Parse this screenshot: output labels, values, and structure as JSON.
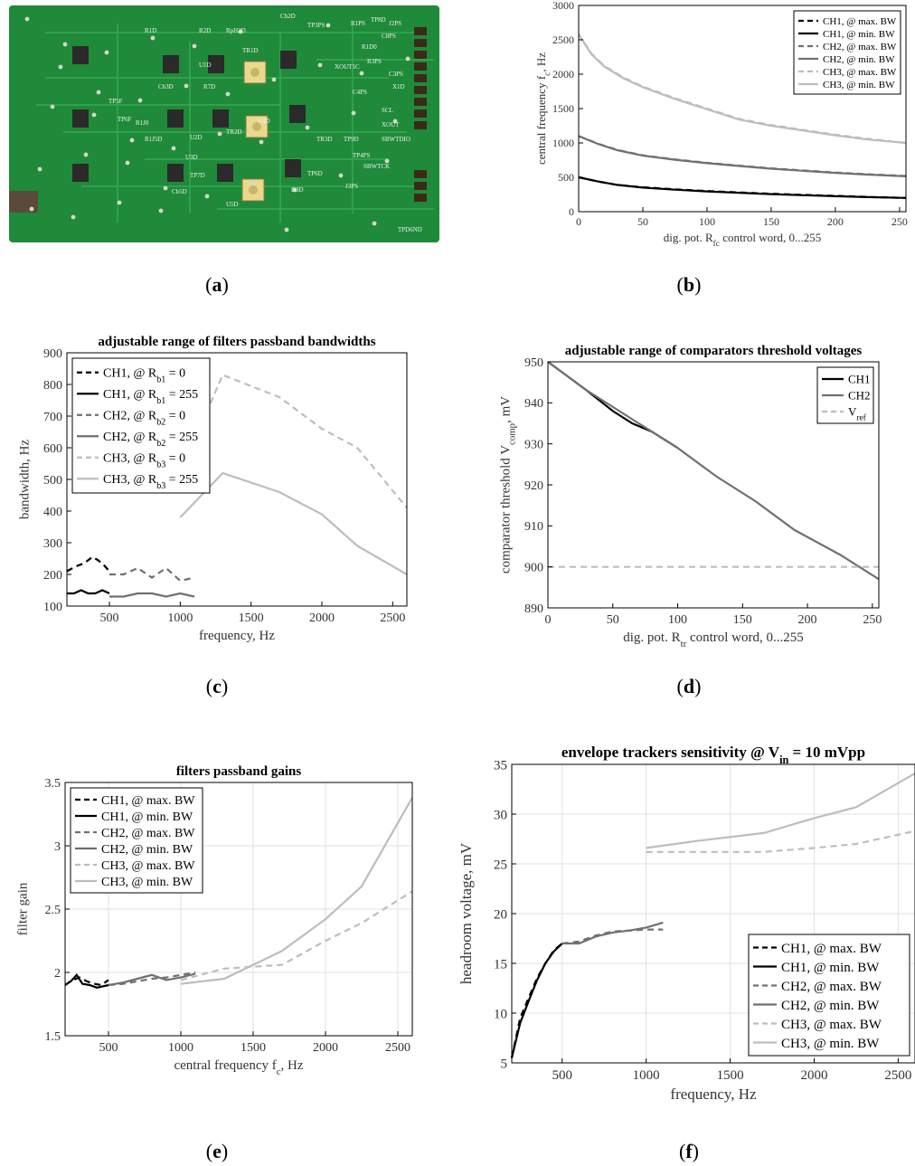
{
  "captions": [
    {
      "letter": "a",
      "open": "(",
      "close": ")"
    },
    {
      "letter": "b",
      "open": "(",
      "close": ")"
    },
    {
      "letter": "c",
      "open": "(",
      "close": ")"
    },
    {
      "letter": "d",
      "open": "(",
      "close": ")"
    },
    {
      "letter": "e",
      "open": "(",
      "close": ")"
    },
    {
      "letter": "f",
      "open": "(",
      "close": ")"
    }
  ],
  "pcb": {
    "board_color": "#1f8a3a",
    "silkscreen_labels": [
      "Cb2D",
      "TP3PS",
      "R1D",
      "R2D",
      "RpH3D",
      "U1D",
      "TR1D",
      "R7D",
      "Cb3D",
      "U2D",
      "TR2D",
      "U3D",
      "TP5F",
      "TP6F",
      "R1J0",
      "R1J5D",
      "Cb5D",
      "TP7D",
      "U5D",
      "D3D",
      "TR3D",
      "TP9D",
      "TP8D",
      "R1D0",
      "C8PS",
      "C3PS",
      "X1D",
      "SCL",
      "XOUT",
      "SBWTDIO",
      "SBWTCK",
      "TP4PS",
      "R3PS",
      "R1PS",
      "C4PS",
      "TP6D",
      "TPD6ND",
      "J3PS",
      "XOUT1C",
      "U4D",
      "J2PS"
    ]
  },
  "chart_data": [
    {
      "panel": "b",
      "type": "line",
      "title": "",
      "xlabel": "dig. pot. R_fc control word, 0...255",
      "ylabel": "central frequency f_c, Hz",
      "xlim": [
        0,
        255
      ],
      "ylim": [
        0,
        3000
      ],
      "xticks": [
        0,
        50,
        100,
        150,
        200,
        250
      ],
      "yticks": [
        0,
        500,
        1000,
        1500,
        2000,
        2500,
        3000
      ],
      "grid": false,
      "legend_position": "top-right",
      "series": [
        {
          "name": "CH1, @ max. BW",
          "color": "#000000",
          "dash": true,
          "x": [
            0,
            15,
            30,
            50,
            75,
            100,
            125,
            150,
            175,
            200,
            225,
            255
          ],
          "y": [
            500,
            440,
            390,
            355,
            325,
            300,
            280,
            260,
            245,
            230,
            215,
            200
          ]
        },
        {
          "name": "CH1, @ min. BW",
          "color": "#000000",
          "dash": false,
          "x": [
            0,
            15,
            30,
            50,
            75,
            100,
            125,
            150,
            175,
            200,
            225,
            255
          ],
          "y": [
            500,
            440,
            390,
            350,
            320,
            295,
            275,
            255,
            240,
            225,
            212,
            200
          ]
        },
        {
          "name": "CH2, @ max. BW",
          "color": "#707070",
          "dash": true,
          "x": [
            0,
            15,
            30,
            50,
            75,
            100,
            125,
            150,
            175,
            200,
            225,
            255
          ],
          "y": [
            1100,
            990,
            900,
            820,
            760,
            710,
            670,
            630,
            600,
            570,
            545,
            520
          ]
        },
        {
          "name": "CH2, @ min. BW",
          "color": "#707070",
          "dash": false,
          "x": [
            0,
            15,
            30,
            50,
            75,
            100,
            125,
            150,
            175,
            200,
            225,
            255
          ],
          "y": [
            1100,
            985,
            895,
            815,
            755,
            705,
            665,
            625,
            595,
            565,
            540,
            515
          ]
        },
        {
          "name": "CH3, @ max. BW",
          "color": "#bdbdbd",
          "dash": true,
          "x": [
            0,
            10,
            20,
            35,
            50,
            75,
            100,
            125,
            150,
            175,
            200,
            225,
            255
          ],
          "y": [
            2580,
            2300,
            2120,
            1950,
            1820,
            1650,
            1500,
            1350,
            1260,
            1190,
            1120,
            1060,
            1000
          ]
        },
        {
          "name": "CH3, @ min. BW",
          "color": "#bdbdbd",
          "dash": false,
          "x": [
            0,
            10,
            20,
            35,
            50,
            75,
            100,
            125,
            150,
            175,
            200,
            225,
            255
          ],
          "y": [
            2580,
            2290,
            2110,
            1940,
            1810,
            1640,
            1490,
            1340,
            1250,
            1180,
            1110,
            1050,
            1000
          ]
        }
      ]
    },
    {
      "panel": "c",
      "type": "line",
      "title": "adjustable range of filters passband bandwidths",
      "xlabel": "frequency, Hz",
      "ylabel": "bandwidth, Hz",
      "xlim": [
        200,
        2600
      ],
      "ylim": [
        100,
        900
      ],
      "xticks": [
        500,
        1000,
        1500,
        2000,
        2500
      ],
      "yticks": [
        100,
        200,
        300,
        400,
        500,
        600,
        700,
        800,
        900
      ],
      "grid": false,
      "legend_position": "top-left",
      "series": [
        {
          "name": "CH1, @ R_b1 = 0",
          "color": "#000000",
          "dash": true,
          "x": [
            200,
            260,
            320,
            380,
            420,
            460,
            500
          ],
          "y": [
            210,
            225,
            235,
            255,
            245,
            230,
            210
          ]
        },
        {
          "name": "CH1, @ R_b1 = 255",
          "color": "#000000",
          "dash": false,
          "x": [
            200,
            250,
            300,
            350,
            400,
            450,
            500
          ],
          "y": [
            140,
            140,
            150,
            140,
            140,
            150,
            140
          ]
        },
        {
          "name": "CH2, @ R_b2 = 0",
          "color": "#707070",
          "dash": true,
          "x": [
            500,
            600,
            700,
            800,
            900,
            1000,
            1100
          ],
          "y": [
            200,
            200,
            220,
            190,
            220,
            180,
            190
          ]
        },
        {
          "name": "CH2, @ R_b2 = 255",
          "color": "#707070",
          "dash": false,
          "x": [
            500,
            600,
            700,
            800,
            900,
            1000,
            1100
          ],
          "y": [
            130,
            130,
            140,
            140,
            130,
            140,
            130
          ]
        },
        {
          "name": "CH3, @ R_b3 = 0",
          "color": "#bdbdbd",
          "dash": true,
          "x": [
            1000,
            1300,
            1700,
            2000,
            2250,
            2600
          ],
          "y": [
            520,
            830,
            760,
            660,
            600,
            410
          ]
        },
        {
          "name": "CH3, @ R_b3 = 255",
          "color": "#bdbdbd",
          "dash": false,
          "x": [
            1000,
            1300,
            1700,
            2000,
            2250,
            2600
          ],
          "y": [
            380,
            520,
            460,
            390,
            290,
            200
          ]
        }
      ]
    },
    {
      "panel": "d",
      "type": "line",
      "title": "adjustable range of comparators threshold voltages",
      "xlabel": "dig. pot. R_tr control word, 0...255",
      "ylabel": "comparator threshold V_comp, mV",
      "xlim": [
        0,
        255
      ],
      "ylim": [
        890,
        950
      ],
      "xticks": [
        0,
        50,
        100,
        150,
        200,
        250
      ],
      "yticks": [
        890,
        900,
        910,
        920,
        930,
        940,
        950
      ],
      "grid": false,
      "legend_position": "top-right",
      "series": [
        {
          "name": "CH1",
          "color": "#000000",
          "dash": false,
          "x": [
            0,
            30,
            50,
            65,
            80,
            100
          ],
          "y": [
            950,
            943,
            938,
            935,
            933,
            929
          ]
        },
        {
          "name": "CH2",
          "color": "#707070",
          "dash": false,
          "x": [
            0,
            30,
            65,
            100,
            130,
            160,
            190,
            225,
            255
          ],
          "y": [
            950,
            943,
            936,
            929,
            922,
            916,
            909,
            903,
            897
          ]
        },
        {
          "name": "V_ref",
          "color": "#bdbdbd",
          "dash": true,
          "x": [
            0,
            255
          ],
          "y": [
            900,
            900
          ]
        }
      ]
    },
    {
      "panel": "e",
      "type": "line",
      "title": "filters passband gains",
      "xlabel": "central frequency f_c, Hz",
      "ylabel": "filter gain",
      "xlim": [
        200,
        2600
      ],
      "ylim": [
        1.5,
        3.5
      ],
      "xticks": [
        500,
        1000,
        1500,
        2000,
        2500
      ],
      "yticks": [
        1.5,
        2,
        2.5,
        3,
        3.5
      ],
      "grid": true,
      "legend_position": "top-left",
      "series": [
        {
          "name": "CH1, @ max. BW",
          "color": "#000000",
          "dash": true,
          "x": [
            200,
            250,
            300,
            350,
            400,
            450,
            500
          ],
          "y": [
            1.9,
            1.94,
            1.96,
            1.93,
            1.91,
            1.9,
            1.94
          ]
        },
        {
          "name": "CH1, @ min. BW",
          "color": "#000000",
          "dash": false,
          "x": [
            200,
            240,
            280,
            320,
            370,
            420,
            460,
            500
          ],
          "y": [
            1.9,
            1.93,
            1.98,
            1.91,
            1.9,
            1.88,
            1.89,
            1.9
          ]
        },
        {
          "name": "CH2, @ max. BW",
          "color": "#707070",
          "dash": true,
          "x": [
            500,
            600,
            700,
            800,
            900,
            1000,
            1100
          ],
          "y": [
            1.9,
            1.91,
            1.93,
            1.95,
            1.96,
            1.98,
            2.0
          ]
        },
        {
          "name": "CH2, @ min. BW",
          "color": "#707070",
          "dash": false,
          "x": [
            500,
            600,
            700,
            800,
            900,
            1000,
            1100
          ],
          "y": [
            1.9,
            1.92,
            1.95,
            1.98,
            1.94,
            1.96,
            1.99
          ]
        },
        {
          "name": "CH3, @ max. BW",
          "color": "#bdbdbd",
          "dash": true,
          "x": [
            1000,
            1300,
            1700,
            2000,
            2250,
            2600
          ],
          "y": [
            1.94,
            2.03,
            2.06,
            2.25,
            2.39,
            2.64
          ]
        },
        {
          "name": "CH3, @ min. BW",
          "color": "#bdbdbd",
          "dash": false,
          "x": [
            1000,
            1300,
            1700,
            2000,
            2250,
            2600
          ],
          "y": [
            1.91,
            1.95,
            2.17,
            2.42,
            2.68,
            3.38
          ]
        }
      ]
    },
    {
      "panel": "f",
      "type": "line",
      "title": "envelope trackers sensitivity @ V_in = 10 mVpp",
      "xlabel": "frequency, Hz",
      "ylabel": "headroom voltage, mV",
      "xlim": [
        200,
        2600
      ],
      "ylim": [
        5,
        35
      ],
      "xticks": [
        500,
        1000,
        1500,
        2000,
        2500
      ],
      "yticks": [
        5,
        10,
        15,
        20,
        25,
        30,
        35
      ],
      "grid": true,
      "legend_position": "bottom-right",
      "series": [
        {
          "name": "CH1, @ max. BW",
          "color": "#000000",
          "dash": true,
          "x": [
            200,
            250,
            300,
            350,
            400,
            450,
            500
          ],
          "y": [
            5.5,
            9.5,
            11.5,
            13.5,
            15,
            16.3,
            17
          ]
        },
        {
          "name": "CH1, @ min. BW",
          "color": "#000000",
          "dash": false,
          "x": [
            200,
            250,
            300,
            350,
            400,
            450,
            500
          ],
          "y": [
            5.5,
            9,
            11.2,
            13.3,
            15,
            16.2,
            17
          ]
        },
        {
          "name": "CH2, @ max. BW",
          "color": "#707070",
          "dash": true,
          "x": [
            500,
            600,
            700,
            800,
            900,
            1000,
            1100
          ],
          "y": [
            17,
            17.2,
            17.8,
            18.2,
            18.3,
            18.4,
            18.4
          ]
        },
        {
          "name": "CH2, @ min. BW",
          "color": "#707070",
          "dash": false,
          "x": [
            500,
            600,
            700,
            800,
            900,
            1000,
            1100
          ],
          "y": [
            17,
            17,
            17.7,
            18.1,
            18.3,
            18.6,
            19.1
          ]
        },
        {
          "name": "CH3, @ max. BW",
          "color": "#bdbdbd",
          "dash": true,
          "x": [
            1000,
            1300,
            1700,
            2000,
            2250,
            2600
          ],
          "y": [
            26.2,
            26.2,
            26.2,
            26.6,
            27,
            28.3
          ]
        },
        {
          "name": "CH3, @ min. BW",
          "color": "#bdbdbd",
          "dash": false,
          "x": [
            1000,
            1300,
            1700,
            2000,
            2250,
            2600
          ],
          "y": [
            26.6,
            27.3,
            28.1,
            29.6,
            30.7,
            34.1
          ]
        }
      ]
    }
  ]
}
